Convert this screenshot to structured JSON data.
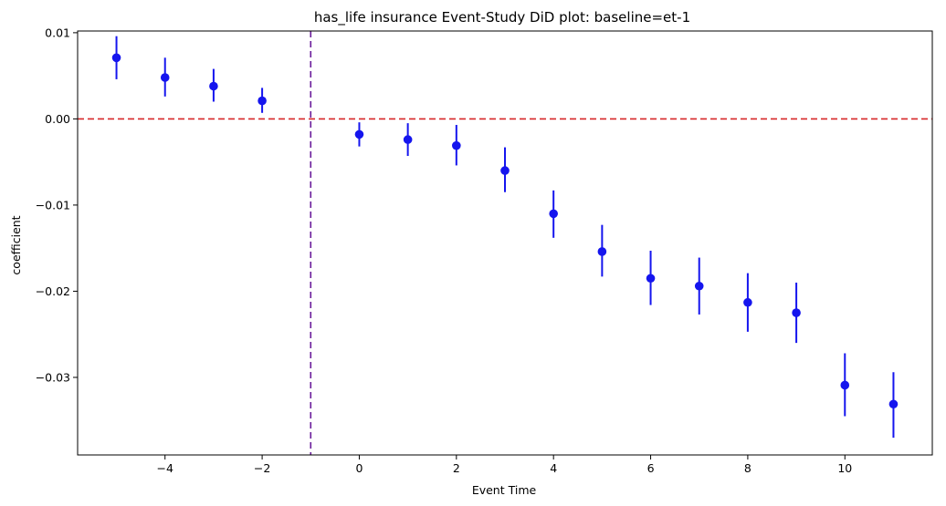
{
  "chart_data": {
    "type": "scatter",
    "title": "has_life insurance Event-Study DiD plot: baseline=et-1",
    "xlabel": "Event Time",
    "ylabel": "coefficient",
    "xlim": [
      -5.8,
      11.8
    ],
    "ylim": [
      -0.039,
      0.0102
    ],
    "x_ticks": [
      -4,
      -2,
      0,
      2,
      4,
      6,
      8,
      10
    ],
    "x_tick_labels": [
      "−4",
      "−2",
      "0",
      "2",
      "4",
      "6",
      "8",
      "10"
    ],
    "y_ticks": [
      0.01,
      0.0,
      -0.01,
      -0.02,
      -0.03
    ],
    "y_tick_labels": [
      "0.01",
      "0.00",
      "−0.01",
      "−0.02",
      "−0.03"
    ],
    "grid": false,
    "reference_lines": [
      {
        "orientation": "horizontal",
        "value": 0.0,
        "color": "#d62728",
        "style": "dashed"
      },
      {
        "orientation": "vertical",
        "value": -1,
        "color": "#6a1b9a",
        "style": "dashed"
      }
    ],
    "series": [
      {
        "color": "#1515ee",
        "points": [
          {
            "x": -5,
            "y": 0.0071,
            "lo": 0.0046,
            "hi": 0.0096
          },
          {
            "x": -4,
            "y": 0.0048,
            "lo": 0.0026,
            "hi": 0.0071
          },
          {
            "x": -3,
            "y": 0.0038,
            "lo": 0.002,
            "hi": 0.0058
          },
          {
            "x": -2,
            "y": 0.0021,
            "lo": 0.0007,
            "hi": 0.0036
          },
          {
            "x": 0,
            "y": -0.0018,
            "lo": -0.0032,
            "hi": -0.0004
          },
          {
            "x": 1,
            "y": -0.0024,
            "lo": -0.0043,
            "hi": -0.0005
          },
          {
            "x": 2,
            "y": -0.0031,
            "lo": -0.0054,
            "hi": -0.0007
          },
          {
            "x": 3,
            "y": -0.006,
            "lo": -0.0085,
            "hi": -0.0033
          },
          {
            "x": 4,
            "y": -0.011,
            "lo": -0.0138,
            "hi": -0.0083
          },
          {
            "x": 5,
            "y": -0.0154,
            "lo": -0.0183,
            "hi": -0.0123
          },
          {
            "x": 6,
            "y": -0.0185,
            "lo": -0.0216,
            "hi": -0.0153
          },
          {
            "x": 7,
            "y": -0.0194,
            "lo": -0.0227,
            "hi": -0.0161
          },
          {
            "x": 8,
            "y": -0.0213,
            "lo": -0.0247,
            "hi": -0.0179
          },
          {
            "x": 9,
            "y": -0.0225,
            "lo": -0.026,
            "hi": -0.019
          },
          {
            "x": 10,
            "y": -0.0309,
            "lo": -0.0345,
            "hi": -0.0272
          },
          {
            "x": 11,
            "y": -0.0331,
            "lo": -0.037,
            "hi": -0.0294
          }
        ]
      }
    ]
  }
}
